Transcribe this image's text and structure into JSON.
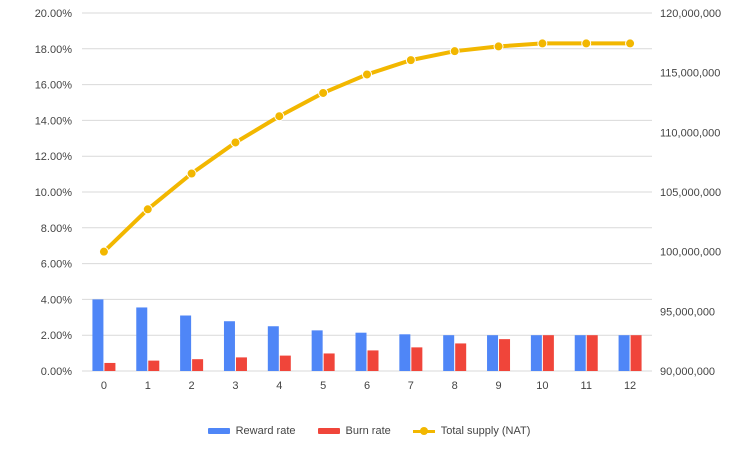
{
  "chart_data": {
    "type": "bar",
    "categories": [
      "0",
      "1",
      "2",
      "3",
      "4",
      "5",
      "6",
      "7",
      "8",
      "9",
      "10",
      "11",
      "12"
    ],
    "series": [
      {
        "name": "Reward rate",
        "kind": "bar",
        "axis": "left",
        "color": "#4f86f7",
        "values": [
          4.0,
          3.55,
          3.1,
          2.78,
          2.5,
          2.27,
          2.14,
          2.05,
          2.0,
          2.0,
          2.0,
          2.0,
          2.0
        ]
      },
      {
        "name": "Burn rate",
        "kind": "bar",
        "axis": "left",
        "color": "#f0453a",
        "values": [
          0.45,
          0.58,
          0.66,
          0.76,
          0.86,
          0.98,
          1.15,
          1.32,
          1.54,
          1.78,
          2.0,
          2.0,
          2.0
        ]
      },
      {
        "name": "Total supply (NAT)",
        "kind": "line",
        "axis": "right",
        "color": "#f2b700",
        "values": [
          100000000,
          103550000,
          106550000,
          109150000,
          111350000,
          113300000,
          114850000,
          116050000,
          116800000,
          117200000,
          117450000,
          117450000,
          117450000
        ]
      }
    ],
    "y_left": {
      "min": 0,
      "max": 20,
      "step": 2,
      "tick_labels": [
        "0.00%",
        "2.00%",
        "4.00%",
        "6.00%",
        "8.00%",
        "10.00%",
        "12.00%",
        "14.00%",
        "16.00%",
        "18.00%",
        "20.00%"
      ]
    },
    "y_right": {
      "min": 90000000,
      "max": 120000000,
      "step": 5000000,
      "tick_labels": [
        "90,000,000",
        "95,000,000",
        "100,000,000",
        "105,000,000",
        "110,000,000",
        "115,000,000",
        "120,000,000"
      ]
    },
    "grid": true,
    "legend_position": "bottom"
  }
}
